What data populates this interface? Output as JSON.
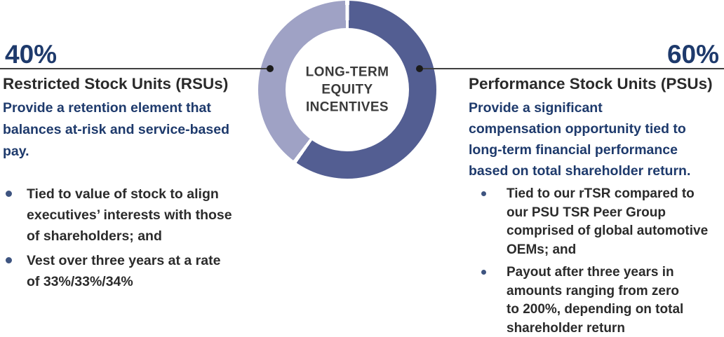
{
  "chart_data": {
    "type": "pie",
    "subtype": "donut",
    "title": "LONG-TERM EQUITY INCENTIVES",
    "center_label": "LONG-TERM\nEQUITY\nINCENTIVES",
    "start_angle_deg": 0,
    "direction": "clockwise",
    "separator_color": "#ffffff",
    "slices": [
      {
        "label": "Performance Stock Units (PSUs)",
        "value": 60,
        "color": "#535e92"
      },
      {
        "label": "Restricted Stock Units (RSUs)",
        "value": 40,
        "color": "#9fa2c5"
      }
    ]
  },
  "left_panel": {
    "percent": "40%",
    "title": "Restricted Stock Units (RSUs)",
    "description": "Provide a retention element that\nbalances at-risk and service-based\npay.",
    "bullets": [
      "Tied to value of stock to align\nexecutives’ interests with those\nof shareholders; and",
      "Vest over three years at a rate\nof 33%/33%/34%"
    ]
  },
  "right_panel": {
    "percent": "60%",
    "title": "Performance Stock Units (PSUs)",
    "description": "Provide a significant\ncompensation opportunity tied to\nlong-term financial performance\nbased on total shareholder return.",
    "bullets": [
      "Tied to our rTSR compared to\nour PSU TSR Peer Group\ncomprised of global automotive\nOEMs; and",
      "Payout after three years in\namounts ranging from zero\nto 200%, depending on total\nshareholder return"
    ]
  },
  "colors": {
    "navy_text": "#1e3a6c",
    "dark_text": "#2a2a2a",
    "center_label_text": "#3a3a3a",
    "slice_dark": "#535e92",
    "slice_light": "#9fa2c5",
    "connector_line": "#3f3f3f",
    "connector_dot": "#1b1b1b",
    "bullet_dot": "#3e5480"
  }
}
